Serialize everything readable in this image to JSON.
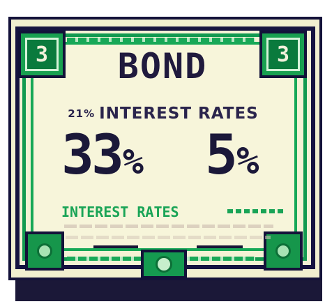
{
  "certificate": {
    "title": "BOND",
    "subtitle_prefix": "21%",
    "subtitle": "INTEREST RATES",
    "rate_left_number": "33",
    "rate_left_symbol": "%",
    "rate_right_number": "5",
    "rate_right_symbol": "%",
    "green_label": "INTEREST RATES",
    "corner_left_number": "3",
    "corner_right_number": "3"
  },
  "colors": {
    "navy": "#151340",
    "green": "#17a857",
    "cream": "#f4f2d5"
  }
}
